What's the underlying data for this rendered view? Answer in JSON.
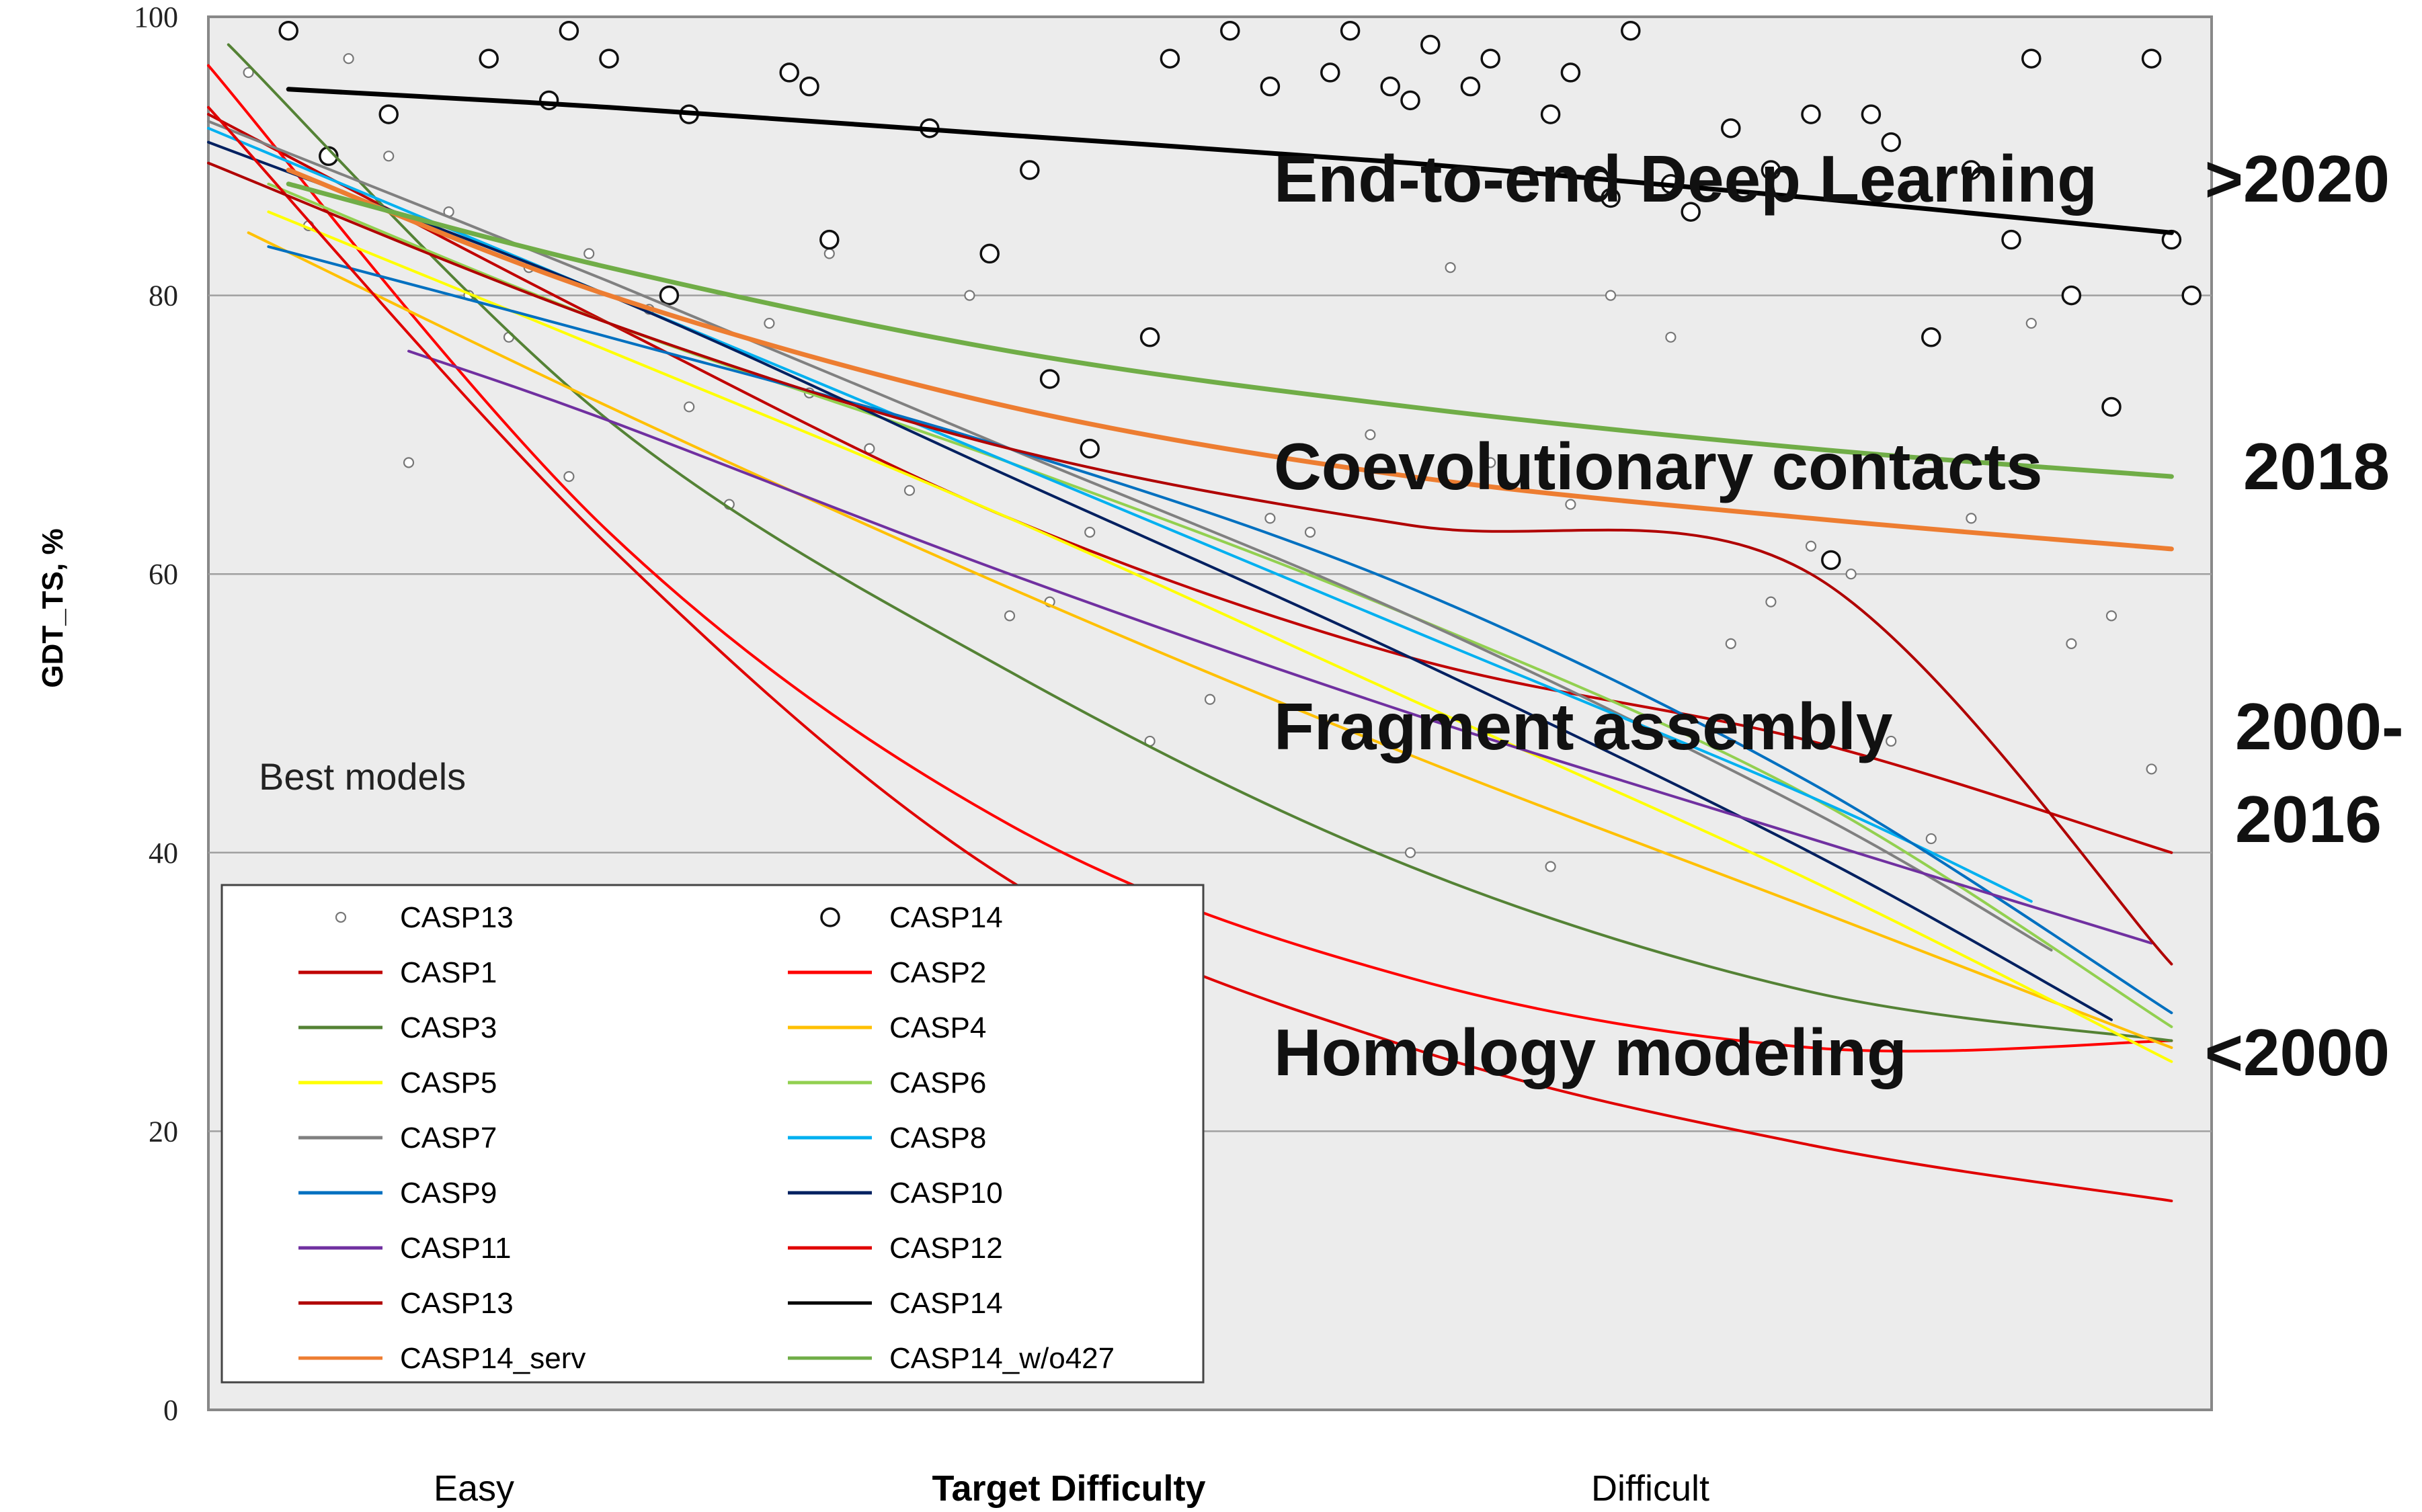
{
  "chart_data": {
    "type": "line",
    "ylabel": "GDT_TS, %",
    "xlabel": "Target Difficulty",
    "x_tick_labels": [
      "Easy",
      "Difficult"
    ],
    "ylim": [
      0,
      100
    ],
    "xlim": [
      0,
      100
    ],
    "y_ticks": [
      "0",
      "20",
      "40",
      "60",
      "80",
      "100"
    ],
    "grid": "horizontal",
    "annotation_best_models": "Best models",
    "era_labels": [
      {
        "text": "End-to-end Deep Learning",
        "period": ">2020"
      },
      {
        "text": "Coevolutionary contacts",
        "period": "2018"
      },
      {
        "text": "Fragment assembly",
        "period": "2000-\n2016"
      },
      {
        "text": "Homology modeling",
        "period": "<2000"
      }
    ],
    "legend_position": "bottom-left",
    "series": [
      {
        "name": "CASP1",
        "color": "#c00000",
        "x": [
          0,
          20,
          40,
          60,
          80,
          98
        ],
        "y": [
          93,
          78,
          64,
          54,
          48,
          40
        ]
      },
      {
        "name": "CASP2",
        "color": "#ff0000",
        "x": [
          0,
          20,
          40,
          60,
          80,
          98
        ],
        "y": [
          96.5,
          63,
          42,
          31,
          26,
          26.5
        ]
      },
      {
        "name": "CASP3",
        "color": "#548235",
        "x": [
          1,
          20,
          40,
          60,
          80,
          98
        ],
        "y": [
          98,
          71,
          53,
          39,
          30,
          26.5
        ]
      },
      {
        "name": "CASP4",
        "color": "#ffc000",
        "x": [
          2,
          20,
          40,
          60,
          80,
          98
        ],
        "y": [
          84.5,
          72,
          59,
          47,
          36,
          26
        ]
      },
      {
        "name": "CASP5",
        "color": "#ffff00",
        "x": [
          3,
          20,
          40,
          60,
          80,
          98
        ],
        "y": [
          86,
          76,
          64,
          51,
          38,
          25
        ]
      },
      {
        "name": "CASP6",
        "color": "#92d050",
        "x": [
          3,
          20,
          40,
          60,
          80,
          98
        ],
        "y": [
          88,
          78,
          68,
          57,
          44,
          27.5
        ]
      },
      {
        "name": "CASP7",
        "color": "#808080",
        "x": [
          0,
          20,
          40,
          60,
          80,
          92
        ],
        "y": [
          92.5,
          81,
          69,
          57,
          43,
          33
        ]
      },
      {
        "name": "CASP8",
        "color": "#00b0f0",
        "x": [
          0,
          20,
          40,
          60,
          80,
          91
        ],
        "y": [
          92,
          80,
          68,
          56,
          44,
          36.5
        ]
      },
      {
        "name": "CASP9",
        "color": "#0070c0",
        "x": [
          3,
          20,
          40,
          60,
          80,
          98
        ],
        "y": [
          83.5,
          77,
          69,
          59,
          45,
          28.5
        ]
      },
      {
        "name": "CASP10",
        "color": "#002060",
        "x": [
          0,
          20,
          40,
          60,
          80,
          95
        ],
        "y": [
          91,
          80,
          67,
          54,
          40,
          28
        ]
      },
      {
        "name": "CASP11",
        "color": "#7030a0",
        "x": [
          10,
          20,
          40,
          60,
          80,
          97
        ],
        "y": [
          76,
          71,
          60,
          50,
          41,
          33.5
        ]
      },
      {
        "name": "CASP12",
        "color": "#e00000",
        "x": [
          0,
          20,
          40,
          60,
          80,
          98
        ],
        "y": [
          93.5,
          62,
          38,
          26,
          19,
          15
        ]
      },
      {
        "name": "CASP13",
        "color": "#b00000",
        "x": [
          0,
          20,
          40,
          60,
          80,
          98
        ],
        "y": [
          89.5,
          78,
          69,
          63.5,
          60,
          32
        ]
      },
      {
        "name": "CASP14",
        "color": "#000000",
        "x": [
          4,
          20,
          40,
          60,
          80,
          98
        ],
        "y": [
          94.8,
          93.5,
          91.5,
          89.5,
          87,
          84.5
        ]
      },
      {
        "name": "CASP14_serv",
        "color": "#ed7d31",
        "x": [
          4,
          20,
          40,
          60,
          80,
          98
        ],
        "y": [
          89,
          80,
          72,
          67,
          64,
          61.8
        ]
      },
      {
        "name": "CASP14_w/o427",
        "color": "#70ad47",
        "x": [
          4,
          20,
          40,
          60,
          80,
          98
        ],
        "y": [
          88,
          82,
          76,
          72,
          69,
          67
        ]
      }
    ],
    "scatter": [
      {
        "name": "CASP13",
        "marker": "small-circle",
        "x": [
          2,
          5,
          7,
          9,
          10,
          12,
          13,
          15,
          16,
          18,
          19,
          22,
          24,
          26,
          28,
          30,
          31,
          33,
          35,
          38,
          40,
          42,
          44,
          47,
          50,
          53,
          55,
          58,
          60,
          62,
          64,
          67,
          68,
          70,
          73,
          76,
          78,
          80,
          82,
          84,
          86,
          88,
          91,
          93,
          95,
          97
        ],
        "y": [
          96,
          85,
          97,
          90,
          68,
          86,
          80,
          77,
          82,
          67,
          83,
          79,
          72,
          65,
          78,
          73,
          83,
          69,
          66,
          80,
          57,
          58,
          63,
          48,
          51,
          64,
          63,
          70,
          40,
          82,
          68,
          39,
          65,
          80,
          77,
          55,
          58,
          62,
          60,
          48,
          41,
          64,
          78,
          55,
          57,
          46
        ]
      },
      {
        "name": "CASP14",
        "marker": "large-circle",
        "x": [
          4,
          6,
          9,
          14,
          17,
          18,
          20,
          23,
          24,
          29,
          30,
          31,
          36,
          39,
          41,
          42,
          44,
          47,
          48,
          51,
          53,
          56,
          57,
          59,
          60,
          61,
          63,
          64,
          67,
          68,
          70,
          71,
          73,
          74,
          76,
          78,
          80,
          81,
          83,
          84,
          86,
          88,
          90,
          91,
          93,
          95,
          97,
          98,
          99
        ],
        "y": [
          99,
          90,
          93,
          97,
          94,
          99,
          97,
          80,
          93,
          96,
          95,
          84,
          92,
          83,
          89,
          74,
          69,
          77,
          97,
          99,
          95,
          96,
          99,
          95,
          94,
          98,
          95,
          97,
          93,
          96,
          87,
          99,
          88,
          86,
          92,
          89,
          93,
          61,
          93,
          91,
          77,
          89,
          84,
          97,
          80,
          72,
          97,
          84,
          80
        ]
      }
    ]
  }
}
